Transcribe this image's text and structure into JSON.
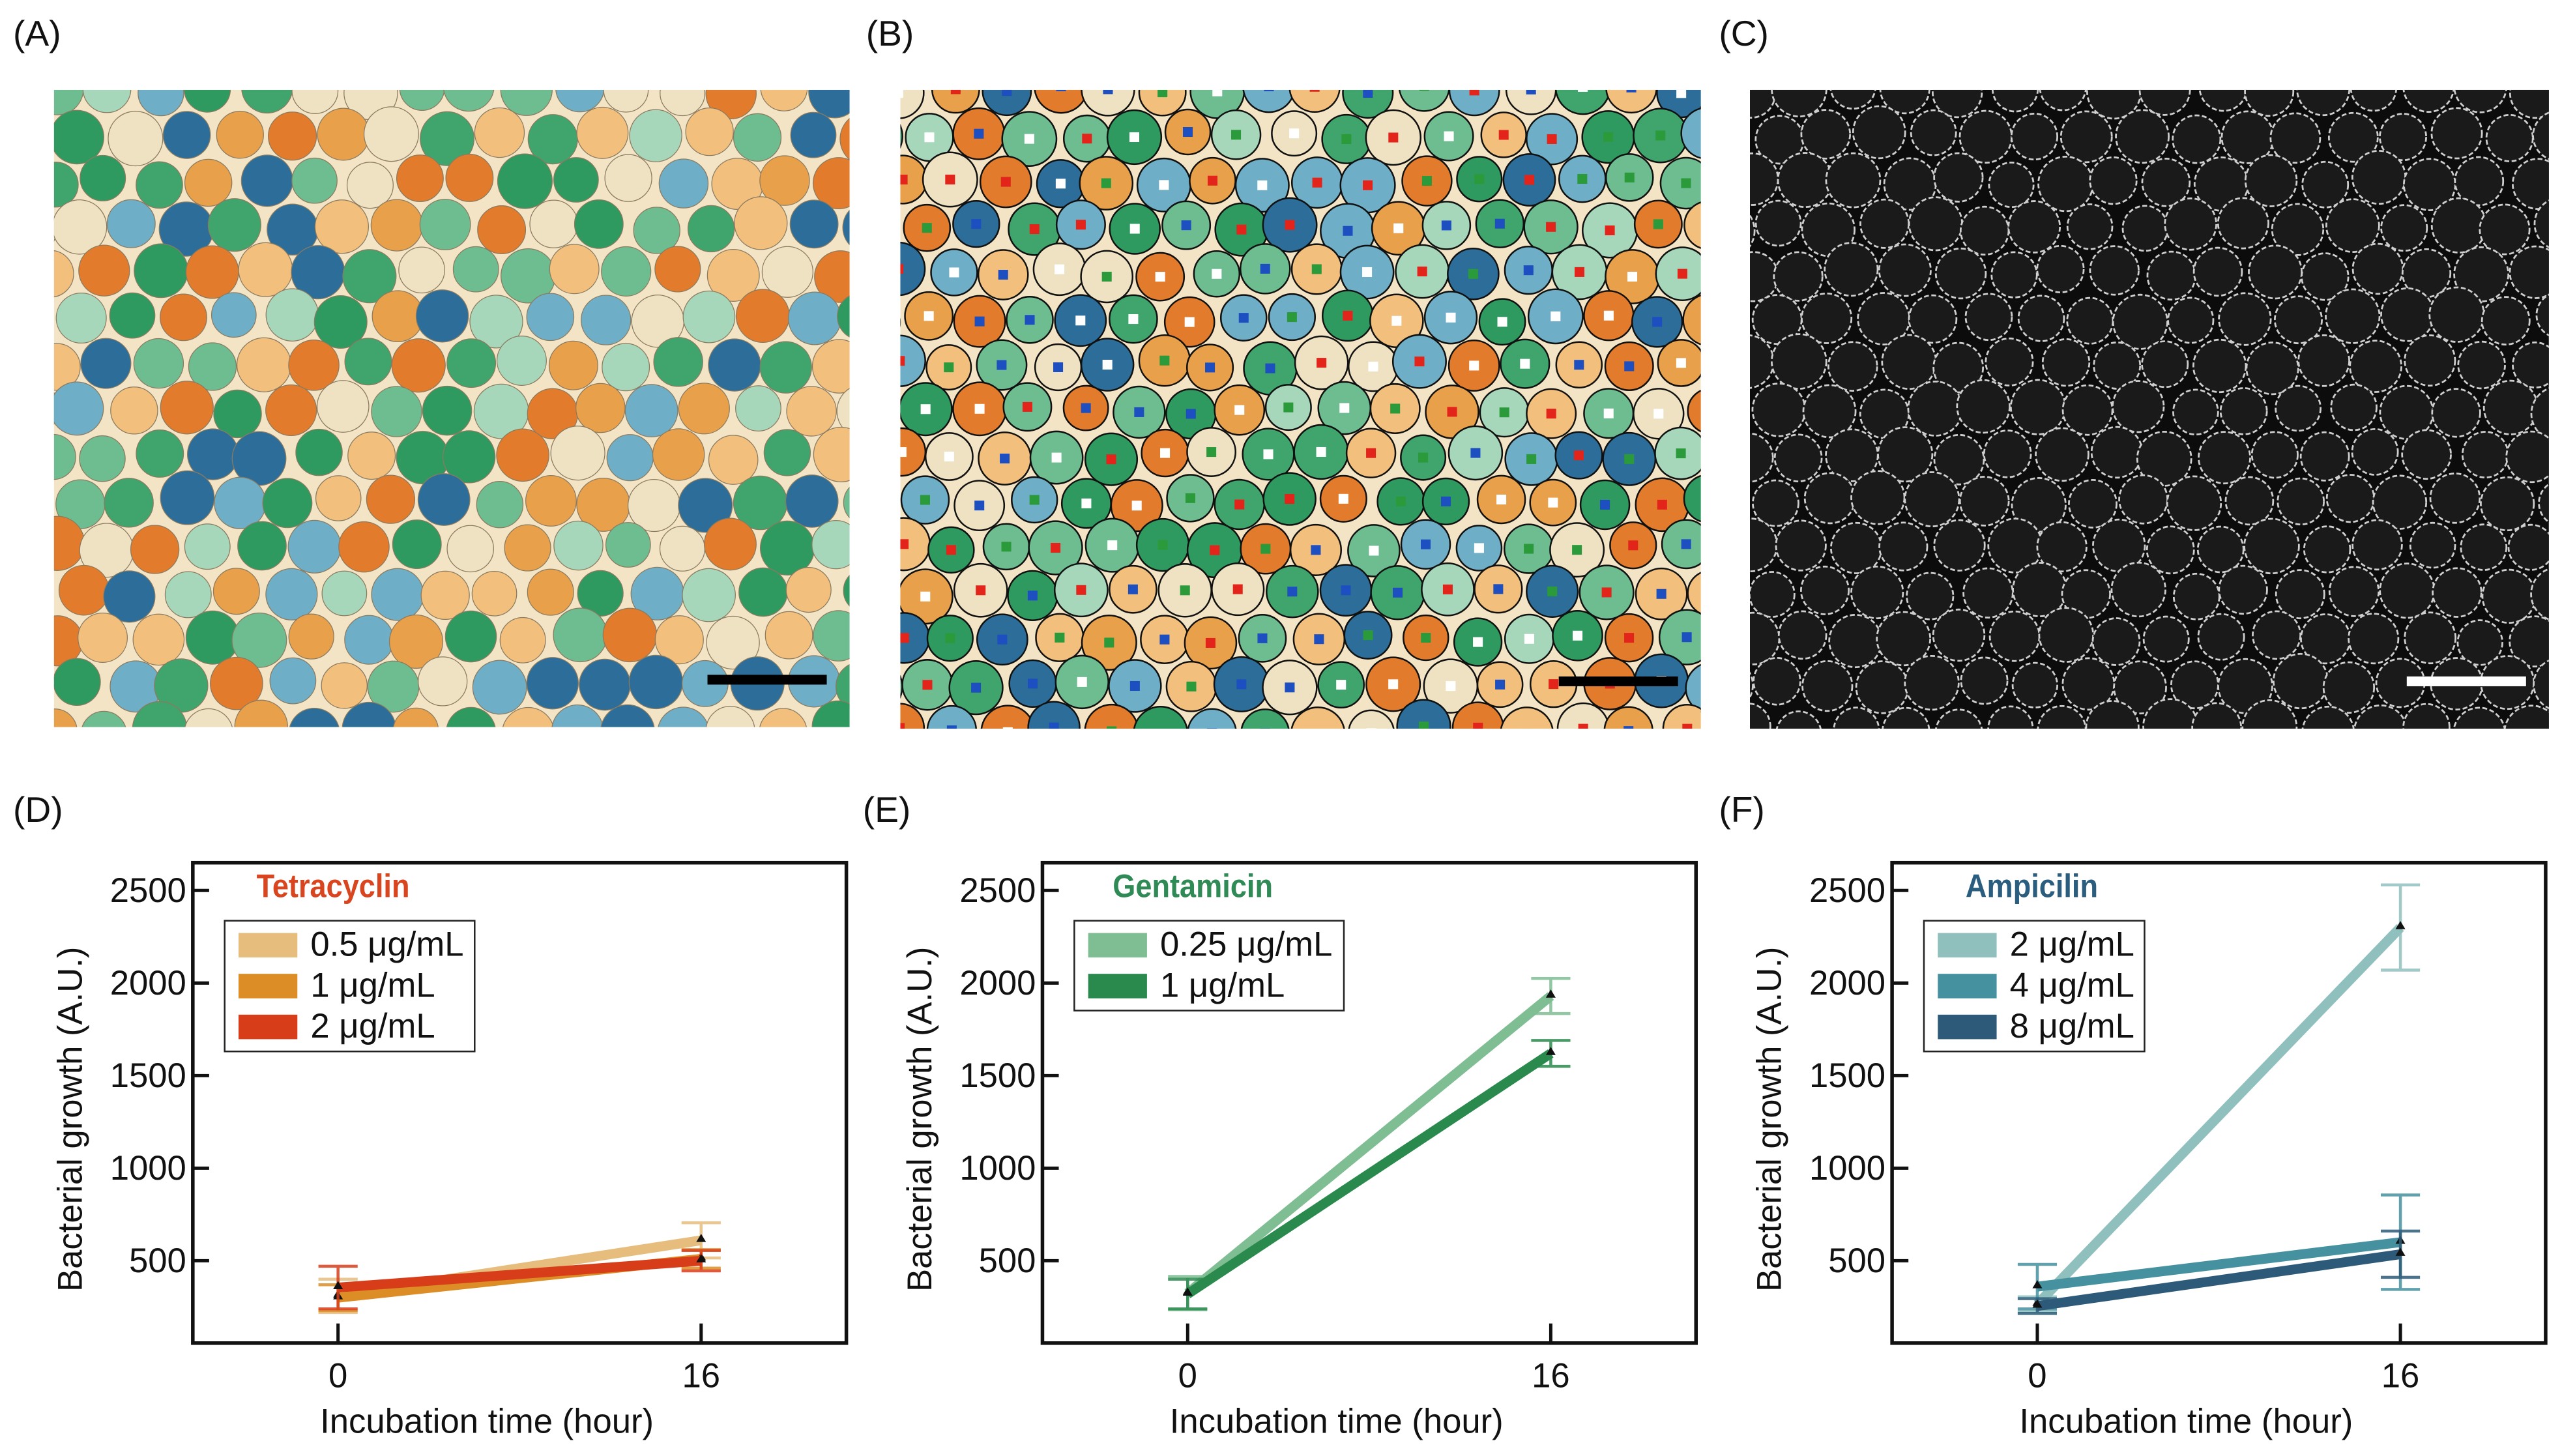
{
  "panel_labels": [
    "(A)",
    "(B)",
    "(C)",
    "(D)",
    "(E)",
    "(F)"
  ],
  "colors": {
    "droplets": [
      "#2f9a5f",
      "#3fa56c",
      "#6dbd91",
      "#a6d7ba",
      "#e9a04a",
      "#f2bf7c",
      "#e27b2b",
      "#2c6e99",
      "#6eaec7",
      "#efe2c2"
    ],
    "background_A": "#f2e4c4",
    "background_C": "#0c0c0c"
  },
  "chart_data": [
    {
      "type": "line",
      "title": "Tetracyclin",
      "title_color": "#d9451e",
      "xlabel": "Incubation time (hour)",
      "ylabel": "Bacterial growth (A.U.)",
      "x": [
        0,
        16
      ],
      "xticks": [
        "0",
        "16"
      ],
      "yticks": [
        "500",
        "1000",
        "1500",
        "2000",
        "2500"
      ],
      "ytick_values": [
        500,
        1000,
        1500,
        2000,
        2500
      ],
      "xlim": [
        -6.4,
        22.4
      ],
      "ylim": [
        55,
        2650
      ],
      "legend_position": "top-left",
      "series": [
        {
          "name": "0.5 μg/mL",
          "color": "#e6bd7d",
          "values": [
            310,
            610
          ],
          "errors": [
            90,
            95
          ]
        },
        {
          "name": "1 μg/mL",
          "color": "#dc8d25",
          "values": [
            300,
            510
          ],
          "errors": [
            70,
            50
          ]
        },
        {
          "name": "2 μg/mL",
          "color": "#d83d1a",
          "values": [
            355,
            500
          ],
          "errors": [
            115,
            55
          ]
        }
      ]
    },
    {
      "type": "line",
      "title": "Gentamicin",
      "title_color": "#2f8a55",
      "xlabel": "Incubation time (hour)",
      "ylabel": "Bacterial growth (A.U.)",
      "x": [
        0,
        16
      ],
      "xticks": [
        "0",
        "16"
      ],
      "yticks": [
        "500",
        "1000",
        "1500",
        "2000",
        "2500"
      ],
      "ytick_values": [
        500,
        1000,
        1500,
        2000,
        2500
      ],
      "xlim": [
        -6.4,
        22.4
      ],
      "ylim": [
        55,
        2650
      ],
      "legend_position": "top-left",
      "series": [
        {
          "name": "0.25 μg/mL",
          "color": "#7fbd93",
          "values": [
            325,
            1930
          ],
          "errors": [
            90,
            95
          ]
        },
        {
          "name": "1 μg/mL",
          "color": "#2a8a4e",
          "values": [
            320,
            1620
          ],
          "errors": [
            80,
            70
          ]
        }
      ]
    },
    {
      "type": "line",
      "title": "Ampicilin",
      "title_color": "#2b5e7e",
      "xlabel": "Incubation time (hour)",
      "ylabel": "Bacterial growth (A.U.)",
      "x": [
        0,
        16
      ],
      "xticks": [
        "0",
        "16"
      ],
      "yticks": [
        "500",
        "1000",
        "1500",
        "2000",
        "2500"
      ],
      "ytick_values": [
        500,
        1000,
        1500,
        2000,
        2500
      ],
      "xlim": [
        -6.4,
        22.4
      ],
      "ylim": [
        55,
        2650
      ],
      "legend_position": "top-left",
      "series": [
        {
          "name": "2 μg/mL",
          "color": "#8fc0bd",
          "values": [
            265,
            2300
          ],
          "errors": [
            40,
            230
          ]
        },
        {
          "name": "4 μg/mL",
          "color": "#4591a0",
          "values": [
            360,
            600
          ],
          "errors": [
            120,
            255
          ]
        },
        {
          "name": "8 μg/mL",
          "color": "#2d5a78",
          "values": [
            255,
            535
          ],
          "errors": [
            40,
            125
          ]
        }
      ]
    }
  ]
}
